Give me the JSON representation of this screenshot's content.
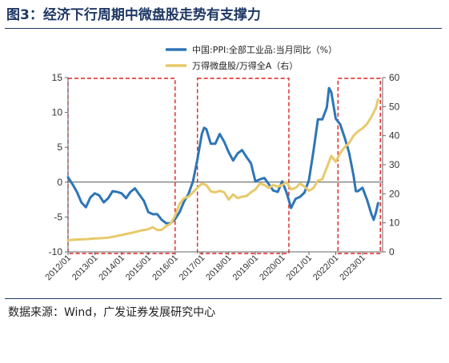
{
  "header": {
    "title": "图3：经济下行周期中微盘股走势有支撑力"
  },
  "footer": {
    "source": "数据来源：Wind，广发证券发展研究中心"
  },
  "chart_data": {
    "type": "line",
    "legend": {
      "placement": "top-right"
    },
    "grid": false,
    "x_ticks": [
      "2012/01",
      "2013/01",
      "2014/01",
      "2015/01",
      "2016/01",
      "2017/01",
      "2018/01",
      "2019/01",
      "2020/01",
      "2021/01",
      "2022/01",
      "2023/01"
    ],
    "y_left": {
      "ticks": [
        15,
        10,
        5,
        0,
        -5,
        -10
      ],
      "range": [
        -10,
        15
      ]
    },
    "y_right": {
      "ticks": [
        60,
        50,
        40,
        30,
        20,
        10,
        0
      ],
      "range": [
        0,
        60
      ]
    },
    "highlight_periods": [
      {
        "start": "2012/01",
        "end": "2016/01"
      },
      {
        "start": "2016/11",
        "end": "2020/04"
      },
      {
        "start": "2022/02",
        "end": "2023/09"
      }
    ],
    "series": [
      {
        "name": "中国:PPI:全部工业品:当月同比（%）",
        "axis": "left",
        "color": "#2e75b6",
        "points": [
          [
            "2012/01",
            0.7
          ],
          [
            "2012/03",
            -0.3
          ],
          [
            "2012/05",
            -1.4
          ],
          [
            "2012/07",
            -2.9
          ],
          [
            "2012/09",
            -3.6
          ],
          [
            "2012/11",
            -2.2
          ],
          [
            "2013/01",
            -1.6
          ],
          [
            "2013/03",
            -1.9
          ],
          [
            "2013/05",
            -2.9
          ],
          [
            "2013/07",
            -2.3
          ],
          [
            "2013/09",
            -1.3
          ],
          [
            "2013/11",
            -1.4
          ],
          [
            "2014/01",
            -1.6
          ],
          [
            "2014/03",
            -2.3
          ],
          [
            "2014/05",
            -1.4
          ],
          [
            "2014/07",
            -0.9
          ],
          [
            "2014/09",
            -1.8
          ],
          [
            "2014/11",
            -2.7
          ],
          [
            "2015/01",
            -4.3
          ],
          [
            "2015/03",
            -4.6
          ],
          [
            "2015/05",
            -4.6
          ],
          [
            "2015/07",
            -5.4
          ],
          [
            "2015/09",
            -5.9
          ],
          [
            "2015/11",
            -5.9
          ],
          [
            "2016/01",
            -5.3
          ],
          [
            "2016/03",
            -4.3
          ],
          [
            "2016/05",
            -2.8
          ],
          [
            "2016/07",
            -1.7
          ],
          [
            "2016/09",
            0.1
          ],
          [
            "2016/11",
            3.3
          ],
          [
            "2017/01",
            6.9
          ],
          [
            "2017/02",
            7.8
          ],
          [
            "2017/03",
            7.6
          ],
          [
            "2017/05",
            5.5
          ],
          [
            "2017/07",
            5.5
          ],
          [
            "2017/09",
            6.9
          ],
          [
            "2017/11",
            5.8
          ],
          [
            "2018/01",
            4.3
          ],
          [
            "2018/03",
            3.1
          ],
          [
            "2018/05",
            4.1
          ],
          [
            "2018/07",
            4.6
          ],
          [
            "2018/09",
            3.6
          ],
          [
            "2018/11",
            2.7
          ],
          [
            "2019/01",
            0.1
          ],
          [
            "2019/03",
            0.4
          ],
          [
            "2019/05",
            0.6
          ],
          [
            "2019/07",
            -0.3
          ],
          [
            "2019/09",
            -1.2
          ],
          [
            "2019/11",
            -1.4
          ],
          [
            "2020/01",
            0.1
          ],
          [
            "2020/03",
            -1.5
          ],
          [
            "2020/05",
            -3.7
          ],
          [
            "2020/07",
            -2.4
          ],
          [
            "2020/09",
            -2.1
          ],
          [
            "2020/11",
            -1.5
          ],
          [
            "2021/01",
            0.3
          ],
          [
            "2021/03",
            4.4
          ],
          [
            "2021/05",
            9.0
          ],
          [
            "2021/07",
            9.0
          ],
          [
            "2021/09",
            10.7
          ],
          [
            "2021/10",
            13.5
          ],
          [
            "2021/11",
            12.9
          ],
          [
            "2022/01",
            9.1
          ],
          [
            "2022/03",
            8.3
          ],
          [
            "2022/05",
            6.4
          ],
          [
            "2022/07",
            4.2
          ],
          [
            "2022/09",
            0.9
          ],
          [
            "2022/10",
            -1.3
          ],
          [
            "2022/11",
            -1.3
          ],
          [
            "2023/01",
            -0.8
          ],
          [
            "2023/03",
            -2.5
          ],
          [
            "2023/05",
            -4.6
          ],
          [
            "2023/06",
            -5.4
          ],
          [
            "2023/07",
            -4.4
          ],
          [
            "2023/08",
            -3.0
          ]
        ]
      },
      {
        "name": "万得微盘股/万得全A（右）",
        "axis": "right",
        "color": "#e8c96b",
        "points": [
          [
            "2012/01",
            4.0
          ],
          [
            "2012/04",
            4.2
          ],
          [
            "2012/07",
            4.3
          ],
          [
            "2012/10",
            4.4
          ],
          [
            "2013/01",
            4.6
          ],
          [
            "2013/04",
            4.7
          ],
          [
            "2013/07",
            4.9
          ],
          [
            "2013/10",
            5.3
          ],
          [
            "2014/01",
            5.8
          ],
          [
            "2014/04",
            6.3
          ],
          [
            "2014/07",
            6.8
          ],
          [
            "2014/10",
            7.4
          ],
          [
            "2015/01",
            7.8
          ],
          [
            "2015/03",
            8.5
          ],
          [
            "2015/05",
            7.5
          ],
          [
            "2015/07",
            7.6
          ],
          [
            "2015/09",
            8.9
          ],
          [
            "2015/11",
            9.7
          ],
          [
            "2016/01",
            12.5
          ],
          [
            "2016/03",
            16.5
          ],
          [
            "2016/05",
            18.5
          ],
          [
            "2016/07",
            19.0
          ],
          [
            "2016/09",
            20.5
          ],
          [
            "2016/11",
            22.0
          ],
          [
            "2017/01",
            23.5
          ],
          [
            "2017/03",
            23.0
          ],
          [
            "2017/05",
            20.8
          ],
          [
            "2017/07",
            20.5
          ],
          [
            "2017/09",
            21.0
          ],
          [
            "2017/11",
            20.5
          ],
          [
            "2018/01",
            18.0
          ],
          [
            "2018/03",
            19.8
          ],
          [
            "2018/05",
            18.5
          ],
          [
            "2018/07",
            19.0
          ],
          [
            "2018/09",
            19.2
          ],
          [
            "2018/11",
            20.5
          ],
          [
            "2019/01",
            21.5
          ],
          [
            "2019/03",
            23.5
          ],
          [
            "2019/05",
            23.0
          ],
          [
            "2019/07",
            22.0
          ],
          [
            "2019/09",
            23.0
          ],
          [
            "2019/11",
            22.5
          ],
          [
            "2020/01",
            23.0
          ],
          [
            "2020/03",
            24.0
          ],
          [
            "2020/05",
            21.5
          ],
          [
            "2020/07",
            22.0
          ],
          [
            "2020/09",
            23.5
          ],
          [
            "2020/11",
            22.5
          ],
          [
            "2021/01",
            21.0
          ],
          [
            "2021/03",
            22.0
          ],
          [
            "2021/05",
            24.5
          ],
          [
            "2021/07",
            25.0
          ],
          [
            "2021/09",
            29.0
          ],
          [
            "2021/11",
            33.0
          ],
          [
            "2022/01",
            31.0
          ],
          [
            "2022/03",
            34.0
          ],
          [
            "2022/05",
            36.0
          ],
          [
            "2022/07",
            37.5
          ],
          [
            "2022/09",
            40.0
          ],
          [
            "2022/11",
            41.5
          ],
          [
            "2023/01",
            42.5
          ],
          [
            "2023/03",
            44.0
          ],
          [
            "2023/05",
            46.5
          ],
          [
            "2023/07",
            49.5
          ],
          [
            "2023/08",
            52.5
          ]
        ]
      }
    ]
  }
}
